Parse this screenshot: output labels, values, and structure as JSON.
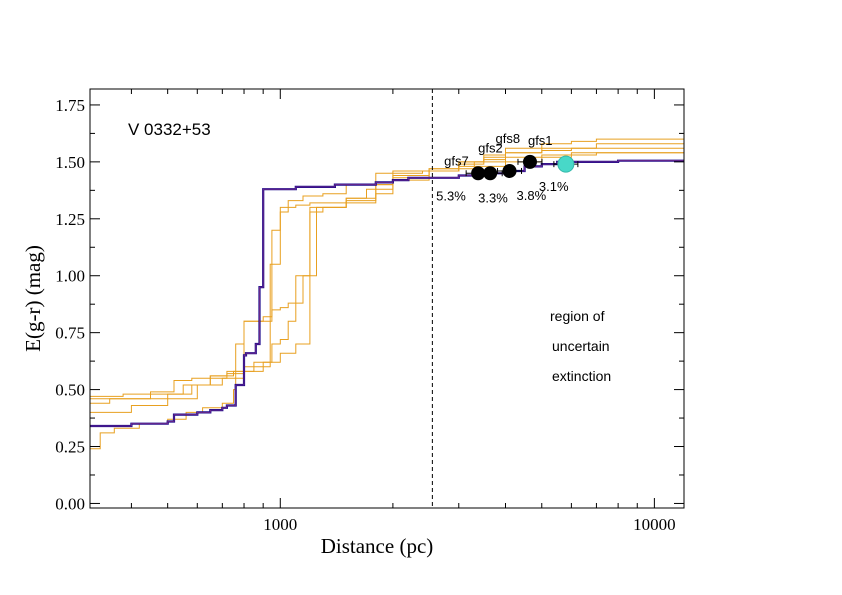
{
  "chart_data": {
    "type": "line",
    "title": "V 0332+53",
    "xlabel": "Distance (pc)",
    "ylabel": "E(g-r) (mag)",
    "xscale": "log",
    "xlim": [
      310,
      12000
    ],
    "ylim": [
      -0.02,
      1.82
    ],
    "x_ticks": [
      1000,
      10000
    ],
    "x_tick_labels": [
      "1000",
      "10000"
    ],
    "y_ticks": [
      0.0,
      0.25,
      0.5,
      0.75,
      1.0,
      1.25,
      1.5,
      1.75
    ],
    "y_tick_labels": [
      "0.00",
      "0.25",
      "0.50",
      "0.75",
      "1.00",
      "1.25",
      "1.50",
      "1.75"
    ],
    "grid": false,
    "reference_line": {
      "x": 2550,
      "style": "dashed",
      "color": "#000000"
    },
    "main_profile": {
      "color": "#1a0a8c",
      "overlay_color": "#7b2d8b",
      "x": [
        310,
        350,
        400,
        450,
        500,
        520,
        600,
        650,
        700,
        720,
        760,
        800,
        810,
        860,
        880,
        900,
        920,
        1000,
        1100,
        1200,
        1400,
        1800,
        2000,
        2200,
        2400,
        3000,
        3300,
        3600,
        4000,
        4500,
        5000,
        5500,
        6000,
        8000,
        10000,
        12000
      ],
      "y": [
        0.34,
        0.34,
        0.35,
        0.35,
        0.36,
        0.39,
        0.4,
        0.41,
        0.42,
        0.43,
        0.52,
        0.65,
        0.66,
        0.7,
        0.95,
        1.38,
        1.38,
        1.38,
        1.39,
        1.39,
        1.4,
        1.41,
        1.42,
        1.43,
        1.43,
        1.44,
        1.45,
        1.45,
        1.46,
        1.48,
        1.49,
        1.5,
        1.5,
        1.505,
        1.505,
        1.505
      ]
    },
    "realizations": {
      "color": "#e8a020",
      "series": [
        {
          "x": [
            310,
            330,
            360,
            420,
            500,
            560,
            620,
            700,
            750,
            760,
            800,
            900,
            950,
            1000,
            1100,
            1200,
            1500,
            1800,
            2000,
            2400,
            3000,
            3300,
            4000,
            5000,
            6000,
            7000,
            12000
          ],
          "y": [
            0.24,
            0.31,
            0.33,
            0.35,
            0.37,
            0.4,
            0.42,
            0.44,
            0.5,
            0.7,
            0.8,
            0.82,
            1.2,
            1.3,
            1.31,
            1.32,
            1.34,
            1.4,
            1.45,
            1.46,
            1.47,
            1.5,
            1.52,
            1.53,
            1.53,
            1.54,
            1.54
          ]
        },
        {
          "x": [
            310,
            400,
            500,
            600,
            700,
            800,
            900,
            940,
            1000,
            1050,
            1150,
            1300,
            1500,
            1800,
            2000,
            2500,
            3000,
            3500,
            4000,
            5000,
            6000,
            8000,
            12000
          ],
          "y": [
            0.4,
            0.43,
            0.46,
            0.52,
            0.55,
            0.58,
            0.6,
            1.05,
            1.28,
            1.33,
            1.35,
            1.36,
            1.4,
            1.45,
            1.46,
            1.47,
            1.5,
            1.52,
            1.54,
            1.55,
            1.56,
            1.56,
            1.56
          ]
        },
        {
          "x": [
            310,
            350,
            450,
            550,
            650,
            750,
            850,
            950,
            1000,
            1050,
            1100,
            1200,
            1500,
            1700,
            2000,
            2500,
            3000,
            3500,
            4000,
            5000,
            7000,
            12000
          ],
          "y": [
            0.44,
            0.46,
            0.48,
            0.52,
            0.56,
            0.58,
            0.62,
            0.7,
            0.72,
            0.8,
            1.0,
            1.3,
            1.34,
            1.38,
            1.44,
            1.47,
            1.49,
            1.51,
            1.54,
            1.56,
            1.58,
            1.58
          ]
        },
        {
          "x": [
            310,
            380,
            450,
            520,
            580,
            650,
            720,
            800,
            880,
            950,
            1000,
            1050,
            1150,
            1250,
            1500,
            1800,
            2000,
            2500,
            3000,
            3500,
            4000,
            5000,
            6000,
            7000,
            12000
          ],
          "y": [
            0.47,
            0.48,
            0.49,
            0.54,
            0.55,
            0.56,
            0.58,
            0.8,
            0.8,
            0.85,
            0.86,
            0.88,
            1.0,
            1.3,
            1.33,
            1.36,
            1.42,
            1.46,
            1.5,
            1.53,
            1.56,
            1.58,
            1.59,
            1.6,
            1.61
          ]
        },
        {
          "x": [
            310,
            400,
            500,
            580,
            650,
            720,
            800,
            900,
            1000,
            1100,
            1200,
            1300,
            1500,
            1800,
            2000,
            2500,
            3000,
            4000,
            5000,
            6000,
            12000
          ],
          "y": [
            0.46,
            0.46,
            0.48,
            0.52,
            0.55,
            0.57,
            0.6,
            0.62,
            0.66,
            0.7,
            1.28,
            1.3,
            1.32,
            1.4,
            1.43,
            1.46,
            1.48,
            1.5,
            1.52,
            1.54,
            1.55
          ]
        }
      ]
    },
    "points": [
      {
        "name": "gfs7",
        "x": 3380,
        "y": 1.45,
        "err_pct": "5.3%",
        "color": "#000000"
      },
      {
        "name": "gfs2",
        "x": 3640,
        "y": 1.45,
        "err_pct": "3.3%",
        "color": "#000000"
      },
      {
        "name": "gfs8",
        "x": 4100,
        "y": 1.46,
        "err_pct": "3.8%",
        "color": "#000000"
      },
      {
        "name": "gfs1",
        "x": 4650,
        "y": 1.5,
        "err_pct": "",
        "color": "#000000"
      },
      {
        "name": "",
        "x": 5800,
        "y": 1.49,
        "err_pct": "3.1%",
        "color": "#48d8c8"
      }
    ],
    "annotation_lines": [
      "region of",
      "uncertain",
      "extinction"
    ]
  }
}
